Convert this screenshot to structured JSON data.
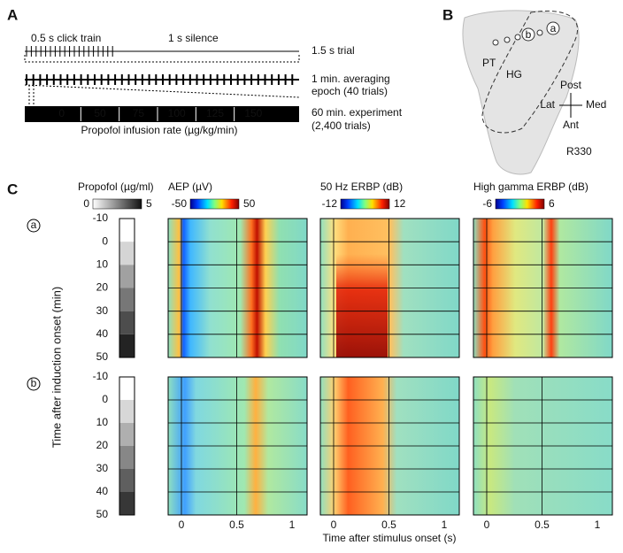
{
  "panel_a": {
    "label": "A",
    "click_train": "0.5 s click train",
    "silence": "1 s silence",
    "trial": "1.5 s trial",
    "epoch": [
      "1 min. averaging",
      "epoch (40 trials)"
    ],
    "segments": [
      "0",
      "50",
      "75",
      "100",
      "125",
      "150"
    ],
    "experiment": [
      "60 min. experiment",
      "(2,400 trials)"
    ],
    "axis_label": "Propofol infusion rate (µg/kg/min)"
  },
  "panel_b": {
    "label": "B",
    "regions": [
      "PT",
      "HG"
    ],
    "contacts": [
      "b",
      "a"
    ],
    "orientation": {
      "up": "Post",
      "left": "Lat",
      "right": "Med",
      "down": "Ant"
    },
    "subject": "R330"
  },
  "panel_c": {
    "label": "C",
    "colorbars": [
      {
        "title": "Propofol (µg/ml)",
        "min": "0",
        "max": "5"
      },
      {
        "title": "AEP (µV)",
        "min": "-50",
        "max": "50"
      },
      {
        "title": "50 Hz ERBP (dB)",
        "min": "-12",
        "max": "12"
      },
      {
        "title": "High gamma ERBP (dB)",
        "min": "-6",
        "max": "6"
      }
    ],
    "rows": [
      "a",
      "b"
    ],
    "yticks": [
      "-10",
      "0",
      "10",
      "20",
      "30",
      "40",
      "50"
    ],
    "xticks": [
      "0",
      "0.5",
      "1"
    ],
    "ylabel": "Time after induction onset (min)",
    "xlabel": "Time after stimulus onset (s)"
  }
}
